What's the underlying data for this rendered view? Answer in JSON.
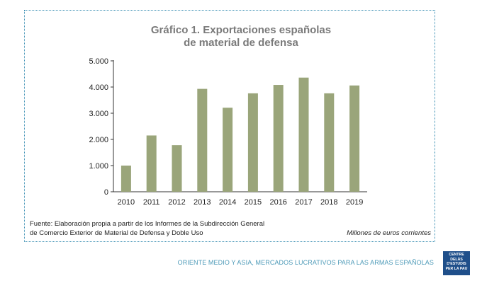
{
  "chart_data": {
    "type": "bar",
    "title_lines": [
      "Gráfico 1. Exportaciones españolas",
      "de material de defensa"
    ],
    "categories": [
      "2010",
      "2011",
      "2012",
      "2013",
      "2014",
      "2015",
      "2016",
      "2017",
      "2018",
      "2019"
    ],
    "values": [
      1000,
      2150,
      1780,
      3930,
      3210,
      3760,
      4080,
      4360,
      3760,
      4060
    ],
    "ylim": [
      0,
      5000
    ],
    "yticks": [
      0,
      1000,
      2000,
      3000,
      4000,
      5000
    ],
    "ytick_labels": [
      "0",
      "1.000",
      "2.000",
      "3.000",
      "4.000",
      "5.000"
    ],
    "bar_color": "#9aa57a",
    "grid": false
  },
  "notes": {
    "source_lines": [
      "Fuente: Elaboración propia a partir de los Informes de la Subdirección General",
      "de Comercio Exterior de Material de Defensa y Doble Uso"
    ],
    "units": "Millones de euros corrientes"
  },
  "footer": {
    "text": "ORIENTE MEDIO Y ASIA, MERCADOS LUCRATIVOS PARA LAS ARMAS ESPAÑOLAS",
    "logo_lines": [
      "CENTRE DELÀS",
      "D'ESTUDIS",
      "PER LA PAU"
    ]
  }
}
